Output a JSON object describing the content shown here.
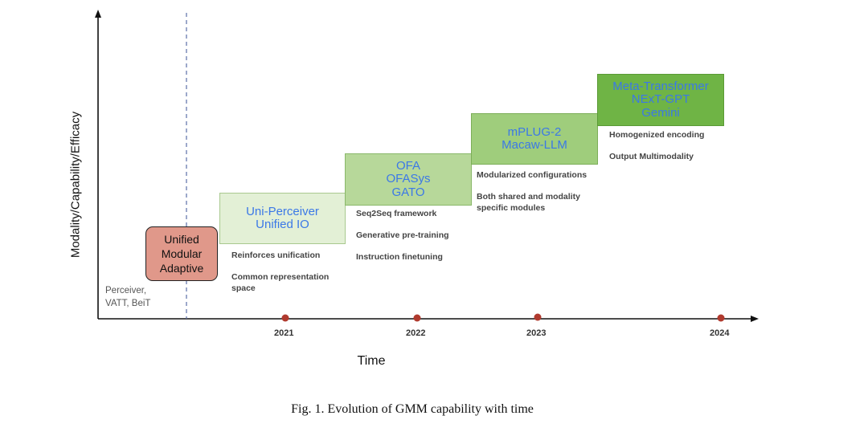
{
  "axes": {
    "y_label": "Modality/Capability/Efficacy",
    "x_label": "Time"
  },
  "origin_models": [
    "Perceiver,",
    "VATT, BeiT"
  ],
  "core_principles": [
    "Unified",
    "Modular",
    "Adaptive"
  ],
  "stages": [
    {
      "year": "2021",
      "models": [
        "Uni-Perceiver",
        "Unified IO"
      ],
      "features": [
        "Reinforces unification",
        "Common representation space"
      ]
    },
    {
      "year": "2022",
      "models": [
        "OFA",
        "OFASys",
        "GATO"
      ],
      "features": [
        "Seq2Seq framework",
        "Generative pre-training",
        "Instruction finetuning"
      ]
    },
    {
      "year": "2023",
      "models": [
        "mPLUG-2",
        "Macaw-LLM"
      ],
      "features": [
        "Modularized configurations",
        "Both shared and modality specific modules"
      ]
    },
    {
      "year": "2024",
      "models": [
        "Meta-Transformer",
        "NExT-GPT",
        "Gemini"
      ],
      "features": [
        "Homogenized encoding",
        "Output Multimodality"
      ]
    }
  ],
  "caption": "Fig. 1.  Evolution of GMM capability with time",
  "colors": {
    "axis": "#111111",
    "timeline_dot": "#b03a2e",
    "core_box": "#e0988a",
    "model_text": "#3b78e7"
  }
}
